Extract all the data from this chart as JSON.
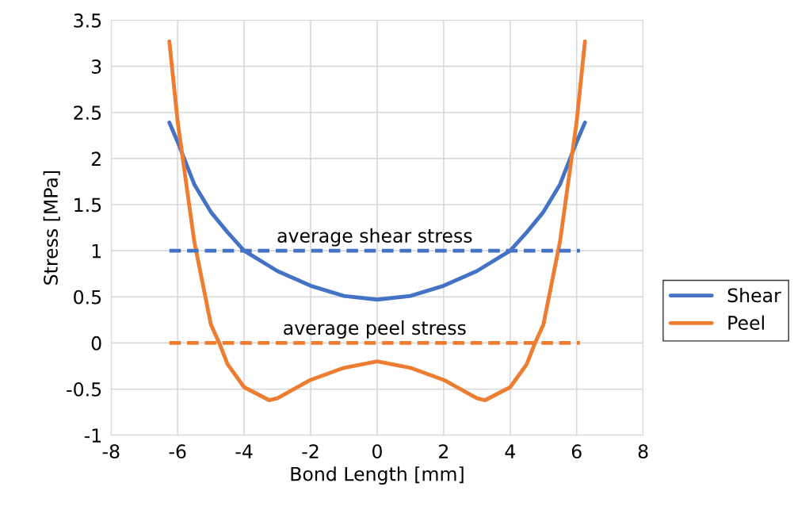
{
  "chart_data": {
    "type": "line",
    "xlabel": "Bond Length [mm]",
    "ylabel": "Stress [MPa]",
    "xlim": [
      -8,
      8
    ],
    "xticks": [
      -8,
      -6,
      -4,
      -2,
      0,
      2,
      4,
      6,
      8
    ],
    "ylim": [
      -1,
      3.5
    ],
    "yticks": [
      -1,
      -0.5,
      0,
      0.5,
      1,
      1.5,
      2,
      2.5,
      3,
      3.5
    ],
    "grid": true,
    "legend": "right",
    "marker": "none",
    "line_style": "solid",
    "series": [
      {
        "name": "Shear",
        "color": "#4472c4",
        "x": [
          -6.25,
          -6,
          -5.5,
          -5,
          -4.5,
          -4,
          -3,
          -2,
          -1,
          0,
          1,
          2,
          3,
          4,
          4.5,
          5,
          5.5,
          6,
          6.25
        ],
        "values": [
          2.39,
          2.18,
          1.72,
          1.42,
          1.2,
          1.0,
          0.78,
          0.62,
          0.51,
          0.47,
          0.51,
          0.62,
          0.78,
          1.0,
          1.2,
          1.42,
          1.72,
          2.18,
          2.39
        ]
      },
      {
        "name": "Peel",
        "color": "#ed7d31",
        "x": [
          -6.25,
          -6,
          -5.5,
          -5,
          -4.75,
          -4.5,
          -4,
          -3.25,
          -3,
          -2,
          -1,
          0,
          1,
          2,
          3,
          3.25,
          4,
          4.5,
          4.75,
          5,
          5.5,
          6,
          6.25
        ],
        "values": [
          3.27,
          2.4,
          1.1,
          0.2,
          0,
          -0.23,
          -0.48,
          -0.62,
          -0.6,
          -0.4,
          -0.27,
          -0.2,
          -0.27,
          -0.4,
          -0.6,
          -0.62,
          -0.48,
          -0.23,
          0,
          0.2,
          1.1,
          2.4,
          3.27
        ]
      },
      {
        "color": "#4472c4",
        "line_style": "dashed",
        "x": [
          -6.25,
          6.1
        ],
        "values": [
          1,
          1
        ]
      },
      {
        "color": "#ed7d31",
        "line_style": "dashed",
        "x": [
          -6.25,
          6.1
        ],
        "values": [
          0,
          0
        ]
      }
    ],
    "annotations": [
      "average shear stress",
      "average peel stress"
    ]
  }
}
